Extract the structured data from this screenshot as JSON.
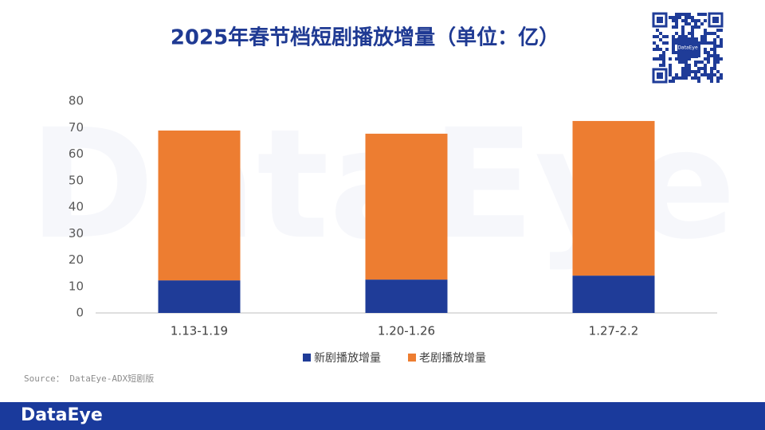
{
  "chart_data": {
    "type": "stacked_bar",
    "title": "2025年春节档短剧播放增量（单位：亿）",
    "categories": [
      "1.13-1.19",
      "1.20-1.26",
      "1.27-2.2"
    ],
    "series": [
      {
        "name": "新剧播放增量",
        "color": "#1f3c98",
        "values": [
          12.3,
          12.6,
          14.1
        ]
      },
      {
        "name": "老剧播放增量",
        "color": "#ed7d31",
        "values": [
          56.6,
          55.1,
          58.4
        ]
      }
    ],
    "ylim": [
      0,
      80
    ],
    "yticks": [
      0,
      10,
      20,
      30,
      40,
      50,
      60,
      70,
      80
    ],
    "grid": false
  },
  "source": "Source： DataEye-ADX短剧版",
  "watermark": "DataEye",
  "qr_label": "DataEye",
  "footer_logo": "DataEye"
}
